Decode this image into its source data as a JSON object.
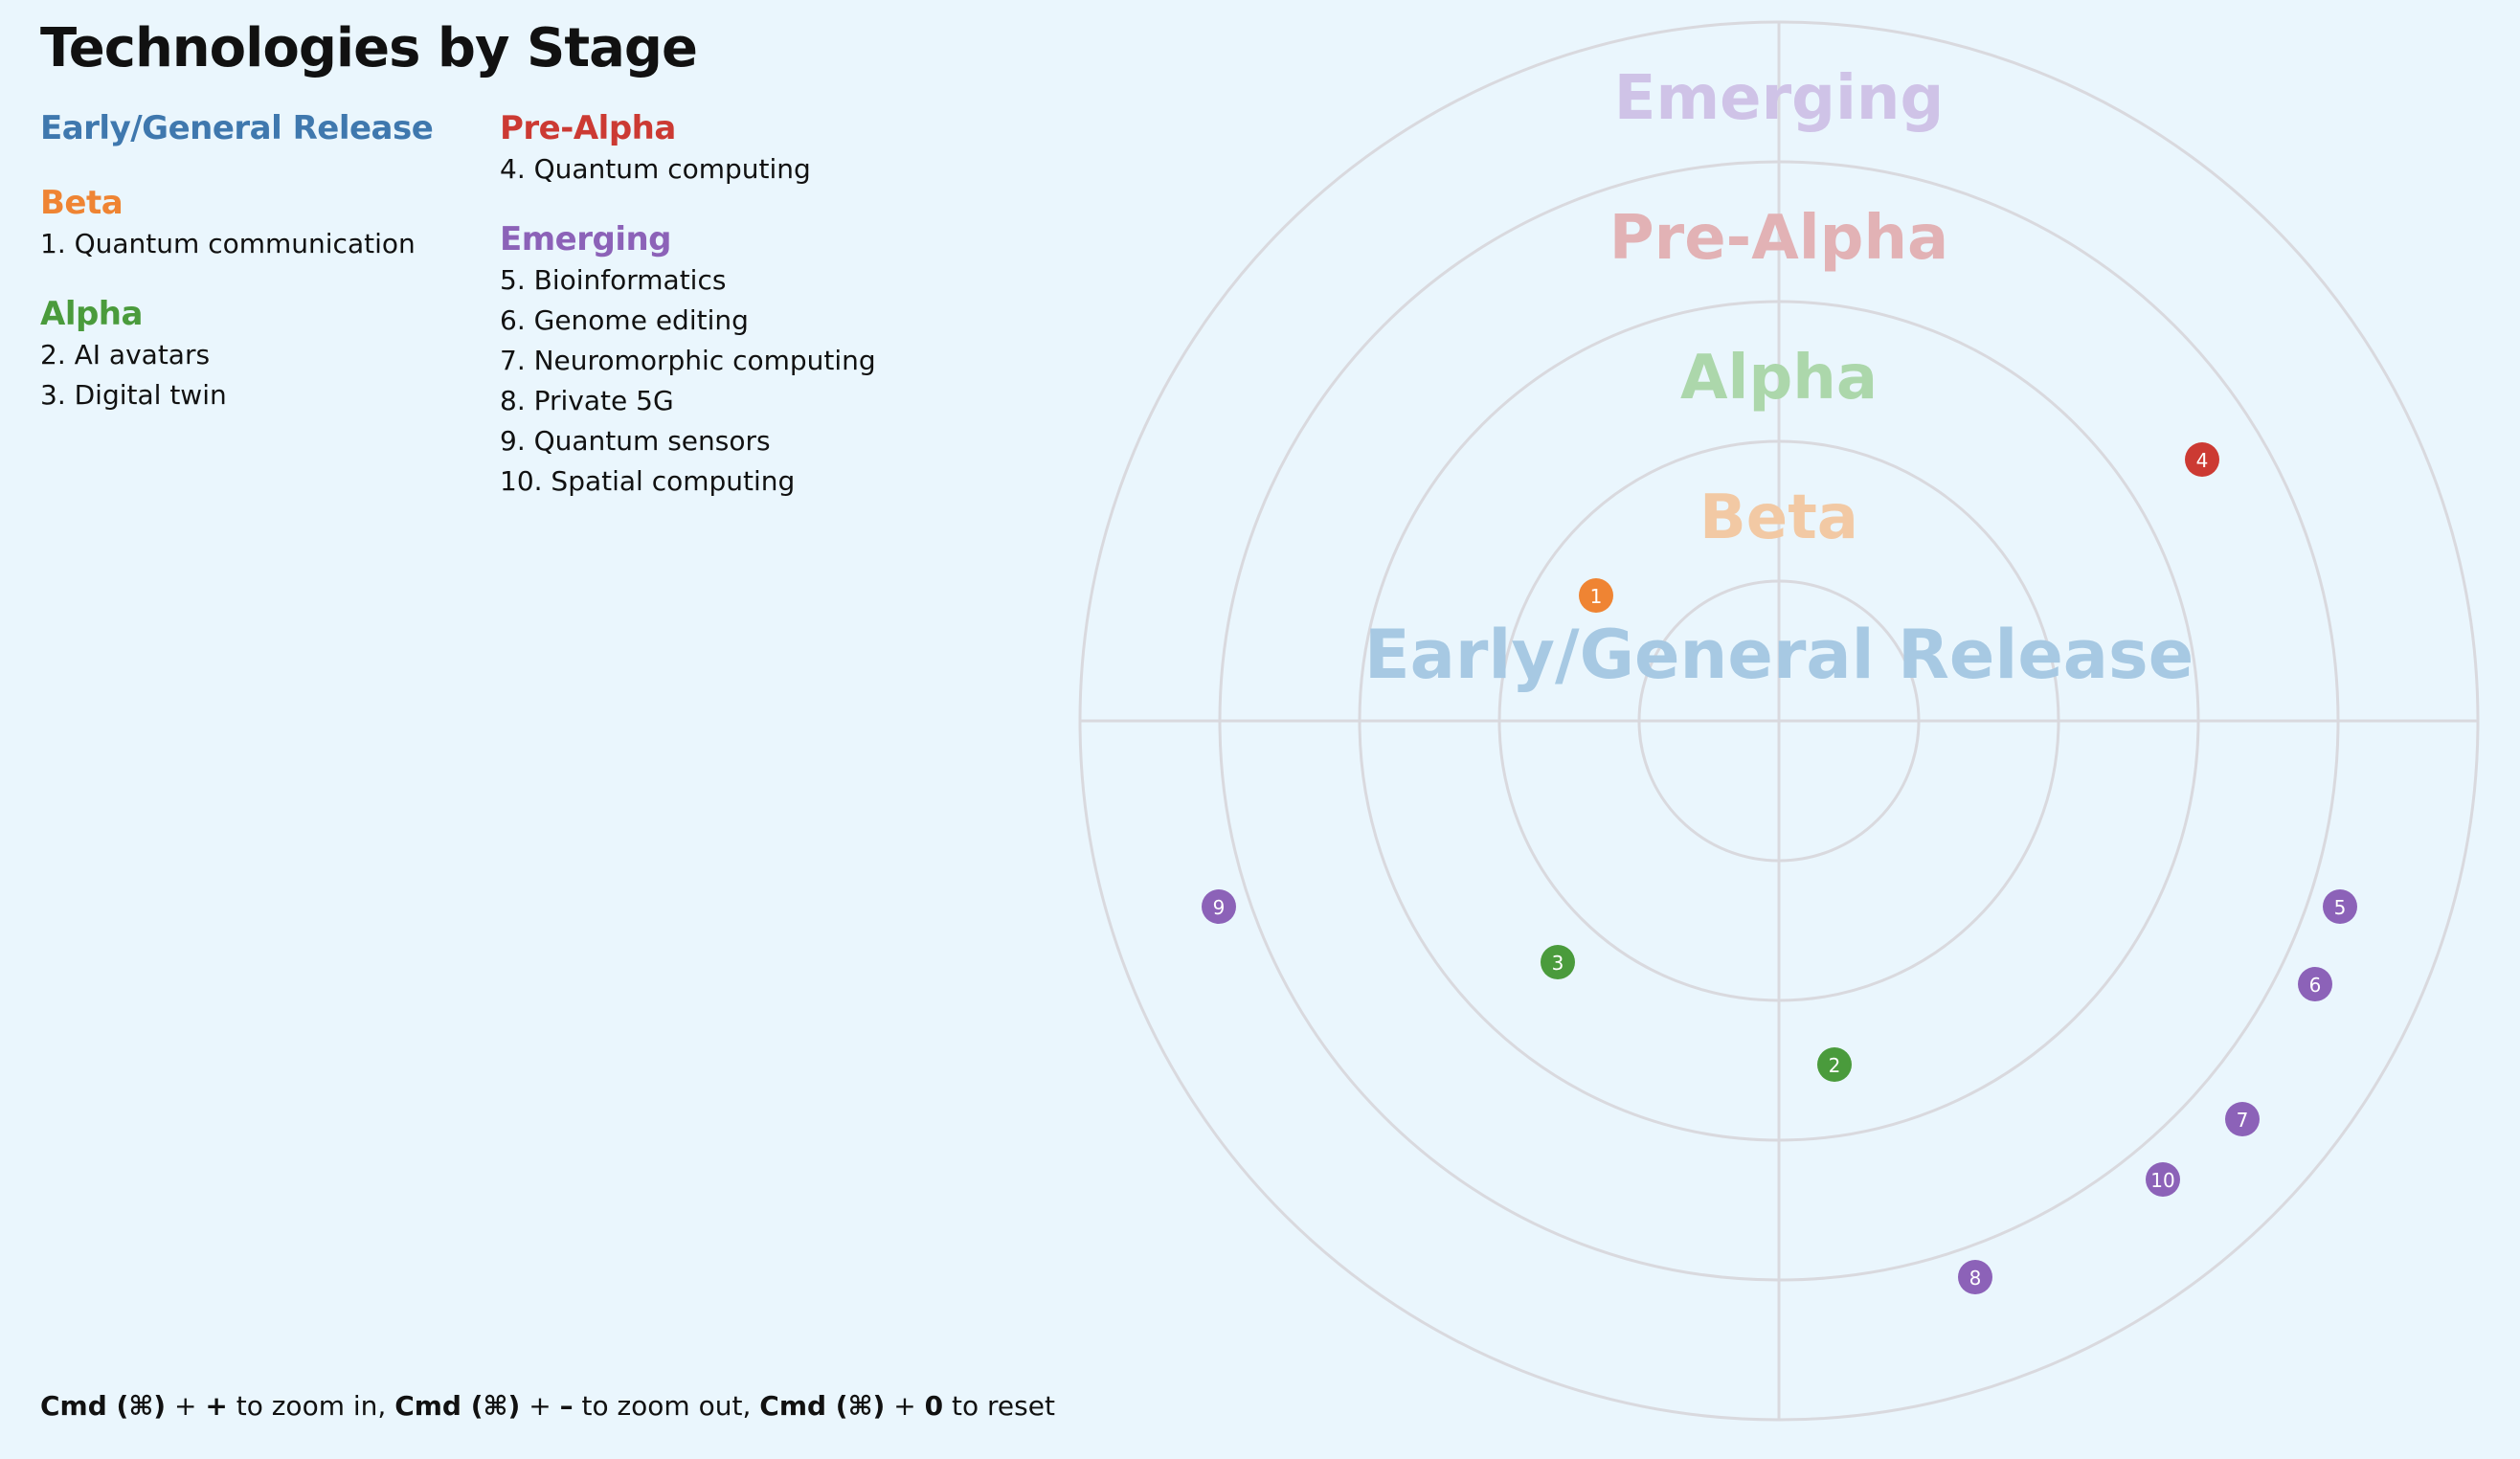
{
  "title": "Technologies by Stage",
  "colors": {
    "early": "#3f78ae",
    "beta": "#ef8433",
    "alpha": "#4a9b3c",
    "prealpha": "#cc3a33",
    "emerging": "#8c62b8",
    "ring_stroke": "#d9d9de",
    "background": "#eaf6fd"
  },
  "legend": [
    {
      "key": "early",
      "name": "Early/General Release",
      "items": []
    },
    {
      "key": "beta",
      "name": "Beta",
      "items": [
        {
          "num": "1",
          "label": "1. Quantum communication"
        }
      ]
    },
    {
      "key": "alpha",
      "name": "Alpha",
      "items": [
        {
          "num": "2",
          "label": "2. AI avatars"
        },
        {
          "num": "3",
          "label": "3. Digital twin"
        }
      ]
    },
    {
      "key": "prealpha",
      "name": "Pre-Alpha",
      "items": [
        {
          "num": "4",
          "label": "4. Quantum computing"
        }
      ]
    },
    {
      "key": "emerging",
      "name": "Emerging",
      "items": [
        {
          "num": "5",
          "label": "5. Bioinformatics"
        },
        {
          "num": "6",
          "label": "6. Genome editing"
        },
        {
          "num": "7",
          "label": "7. Neuromorphic computing"
        },
        {
          "num": "8",
          "label": "8. Private 5G"
        },
        {
          "num": "9",
          "label": "9. Quantum sensors"
        },
        {
          "num": "10",
          "label": "10. Spatial computing"
        }
      ]
    }
  ],
  "rings": [
    {
      "key": "early",
      "name": "Early/General Release"
    },
    {
      "key": "beta",
      "name": "Beta"
    },
    {
      "key": "alpha",
      "name": "Alpha"
    },
    {
      "key": "prealpha",
      "name": "Pre-Alpha"
    },
    {
      "key": "emerging",
      "name": "Emerging"
    }
  ],
  "markers": [
    {
      "num": "1",
      "stage": "beta"
    },
    {
      "num": "2",
      "stage": "alpha"
    },
    {
      "num": "3",
      "stage": "alpha"
    },
    {
      "num": "4",
      "stage": "prealpha"
    },
    {
      "num": "5",
      "stage": "emerging"
    },
    {
      "num": "6",
      "stage": "emerging"
    },
    {
      "num": "7",
      "stage": "emerging"
    },
    {
      "num": "8",
      "stage": "emerging"
    },
    {
      "num": "9",
      "stage": "emerging"
    },
    {
      "num": "10",
      "stage": "emerging"
    }
  ],
  "footer": {
    "zoom_in_keys": "Cmd (⌘)",
    "plus1": " + ",
    "zoom_in_sym": "+",
    "zoom_in_text": " to zoom in, ",
    "zoom_out_keys": "Cmd (⌘)",
    "plus2": " + ",
    "zoom_out_sym": "–",
    "zoom_out_text": " to zoom out, ",
    "reset_keys": "Cmd (⌘)",
    "plus3": " + ",
    "reset_sym": "0",
    "reset_text": " to reset"
  }
}
